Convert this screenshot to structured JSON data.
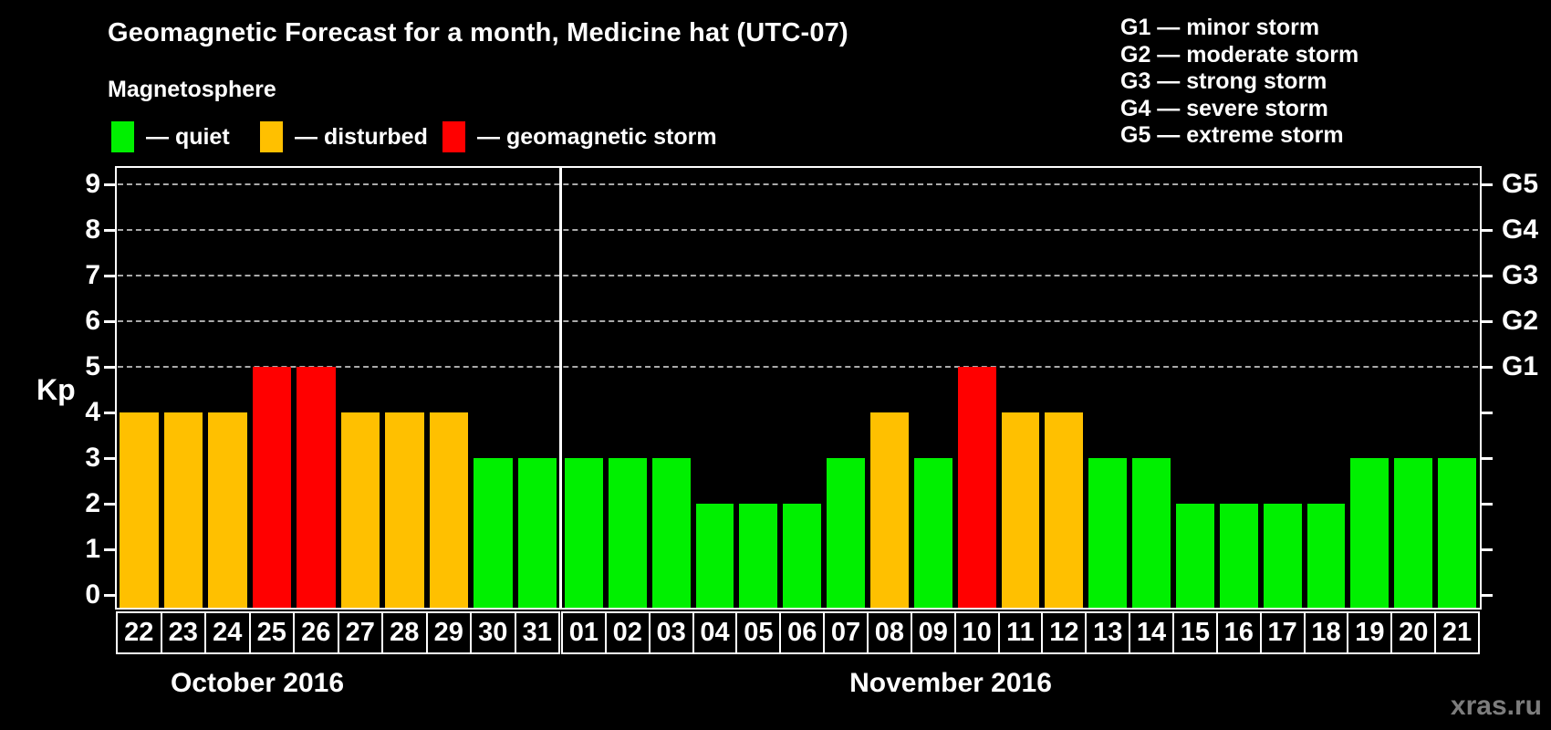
{
  "header": {
    "title": "Geomagnetic Forecast for a month, Medicine hat (UTC-07)",
    "subtitle": "Magnetosphere",
    "watermark": "xras.ru"
  },
  "legend": {
    "items": [
      {
        "name": "quiet",
        "label": "— quiet",
        "color": "#00f000"
      },
      {
        "name": "disturbed",
        "label": "— disturbed",
        "color": "#ffc000"
      },
      {
        "name": "storm",
        "label": "— geomagnetic storm",
        "color": "#ff0000"
      }
    ]
  },
  "g_legend": {
    "lines": [
      "G1 — minor storm",
      "G2 — moderate storm",
      "G3 — strong storm",
      "G4 — severe storm",
      "G5 — extreme storm"
    ]
  },
  "chart_data": {
    "type": "bar",
    "title": "Geomagnetic Forecast for a month, Medicine hat (UTC-07)",
    "ylabel": "Kp",
    "ylim": [
      0,
      9.4
    ],
    "yticks": [
      0,
      1,
      2,
      3,
      4,
      5,
      6,
      7,
      8,
      9
    ],
    "grid_kp_levels": [
      5,
      6,
      7,
      8,
      9
    ],
    "grid_on": true,
    "legend_position": "top-left",
    "right_axis": {
      "labels": [
        {
          "kp": 5,
          "text": "G1"
        },
        {
          "kp": 6,
          "text": "G2"
        },
        {
          "kp": 7,
          "text": "G3"
        },
        {
          "kp": 8,
          "text": "G4"
        },
        {
          "kp": 9,
          "text": "G5"
        }
      ]
    },
    "colors": {
      "quiet": "#00f000",
      "disturbed": "#ffc000",
      "storm": "#ff0000"
    },
    "sections": [
      {
        "month_label": "October 2016",
        "days": [
          "22",
          "23",
          "24",
          "25",
          "26",
          "27",
          "28",
          "29",
          "30",
          "31"
        ],
        "kp": [
          4,
          4,
          4,
          5,
          5,
          4,
          4,
          4,
          3,
          3
        ],
        "states": [
          "disturbed",
          "disturbed",
          "disturbed",
          "storm",
          "storm",
          "disturbed",
          "disturbed",
          "disturbed",
          "quiet",
          "quiet"
        ]
      },
      {
        "month_label": "November 2016",
        "days": [
          "01",
          "02",
          "03",
          "04",
          "05",
          "06",
          "07",
          "08",
          "09",
          "10",
          "11",
          "12",
          "13",
          "14",
          "15",
          "16",
          "17",
          "18",
          "19",
          "20",
          "21"
        ],
        "kp": [
          3,
          3,
          3,
          2,
          2,
          2,
          3,
          4,
          3,
          5,
          4,
          4,
          3,
          3,
          2,
          2,
          2,
          2,
          3,
          3,
          3
        ],
        "states": [
          "quiet",
          "quiet",
          "quiet",
          "quiet",
          "quiet",
          "quiet",
          "quiet",
          "disturbed",
          "quiet",
          "storm",
          "disturbed",
          "disturbed",
          "quiet",
          "quiet",
          "quiet",
          "quiet",
          "quiet",
          "quiet",
          "quiet",
          "quiet",
          "quiet"
        ]
      }
    ]
  }
}
